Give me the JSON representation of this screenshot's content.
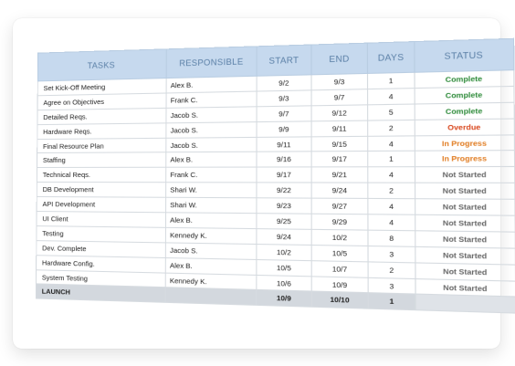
{
  "headers": {
    "tasks": "TASKS",
    "responsible": "RESPONSIBLE",
    "start": "START",
    "end": "END",
    "days": "DAYS",
    "status": "STATUS"
  },
  "status_colors": {
    "Complete": "#2e8b3a",
    "Overdue": "#d8461c",
    "In Progress": "#e07a1e",
    "Not Started": "#666666",
    "": "#666666"
  },
  "rows": [
    {
      "task": "Set Kick-Off Meeting",
      "responsible": "Alex B.",
      "start": "9/2",
      "end": "9/3",
      "days": "1",
      "status": "Complete"
    },
    {
      "task": "Agree on Objectives",
      "responsible": "Frank C.",
      "start": "9/3",
      "end": "9/7",
      "days": "4",
      "status": "Complete"
    },
    {
      "task": "Detailed Reqs.",
      "responsible": "Jacob S.",
      "start": "9/7",
      "end": "9/12",
      "days": "5",
      "status": "Complete"
    },
    {
      "task": "Hardware Reqs.",
      "responsible": "Jacob S.",
      "start": "9/9",
      "end": "9/11",
      "days": "2",
      "status": "Overdue"
    },
    {
      "task": "Final Resource Plan",
      "responsible": "Jacob S.",
      "start": "9/11",
      "end": "9/15",
      "days": "4",
      "status": "In Progress"
    },
    {
      "task": "Staffing",
      "responsible": "Alex B.",
      "start": "9/16",
      "end": "9/17",
      "days": "1",
      "status": "In Progress"
    },
    {
      "task": "Technical Reqs.",
      "responsible": "Frank C.",
      "start": "9/17",
      "end": "9/21",
      "days": "4",
      "status": "Not Started"
    },
    {
      "task": "DB Development",
      "responsible": "Shari W.",
      "start": "9/22",
      "end": "9/24",
      "days": "2",
      "status": "Not Started"
    },
    {
      "task": "API Development",
      "responsible": "Shari W.",
      "start": "9/23",
      "end": "9/27",
      "days": "4",
      "status": "Not Started"
    },
    {
      "task": "UI Client",
      "responsible": "Alex B.",
      "start": "9/25",
      "end": "9/29",
      "days": "4",
      "status": "Not Started"
    },
    {
      "task": "Testing",
      "responsible": "Kennedy K.",
      "start": "9/24",
      "end": "10/2",
      "days": "8",
      "status": "Not Started"
    },
    {
      "task": "Dev. Complete",
      "responsible": "Jacob S.",
      "start": "10/2",
      "end": "10/5",
      "days": "3",
      "status": "Not Started"
    },
    {
      "task": "Hardware Config.",
      "responsible": "Alex B.",
      "start": "10/5",
      "end": "10/7",
      "days": "2",
      "status": "Not Started"
    },
    {
      "task": "System Testing",
      "responsible": "Kennedy K.",
      "start": "10/6",
      "end": "10/9",
      "days": "3",
      "status": "Not Started"
    },
    {
      "task": "LAUNCH",
      "responsible": "",
      "start": "10/9",
      "end": "10/10",
      "days": "1",
      "status": "",
      "launch": true
    }
  ]
}
